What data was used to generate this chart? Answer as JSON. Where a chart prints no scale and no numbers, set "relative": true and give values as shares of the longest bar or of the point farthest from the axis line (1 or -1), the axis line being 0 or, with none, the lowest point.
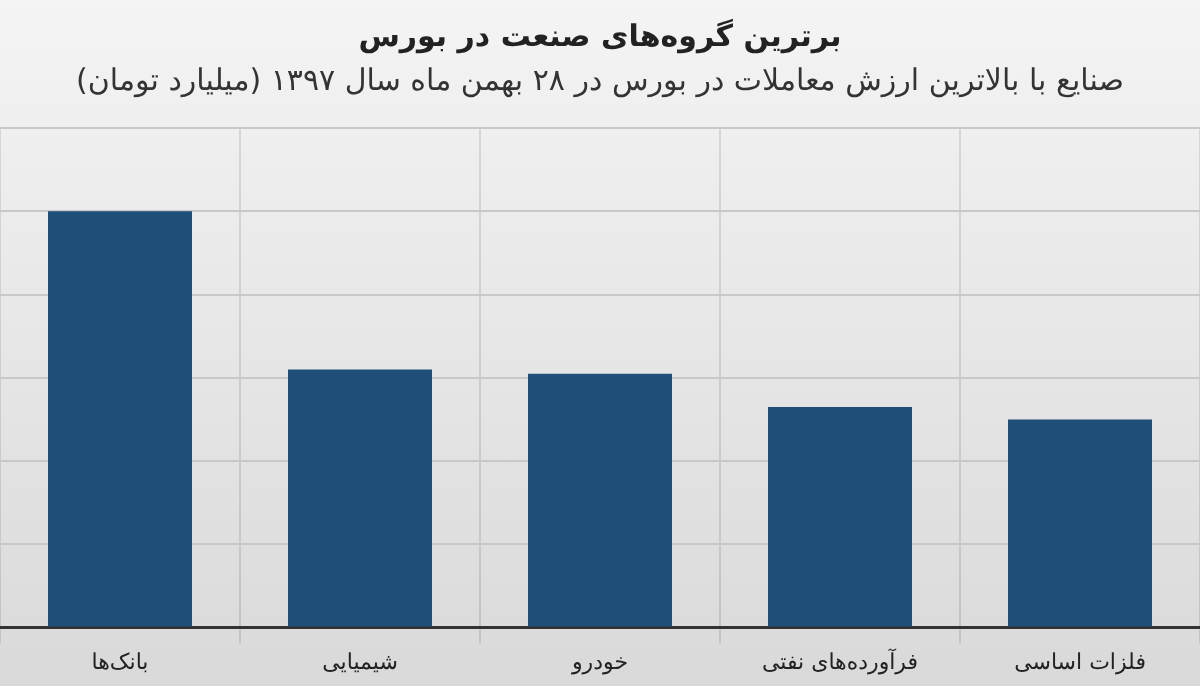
{
  "chart_data": {
    "type": "bar",
    "title": "برترین گروه‌های صنعت در بورس",
    "subtitle": "صنایع با بالاترین ارزش معاملات در بورس در ۲۸ بهمن ماه سال ۱۳۹۷ (میلیارد تومان)",
    "categories": [
      "بانک‌ها",
      "شیمیایی",
      "خودرو",
      "فرآورده‌های نفتی",
      "فلزات اساسی"
    ],
    "values": [
      1,
      0.62,
      0.61,
      0.53,
      0.5
    ],
    "color": "#1f4e79",
    "relative": true,
    "grid": true,
    "legend": false
  }
}
